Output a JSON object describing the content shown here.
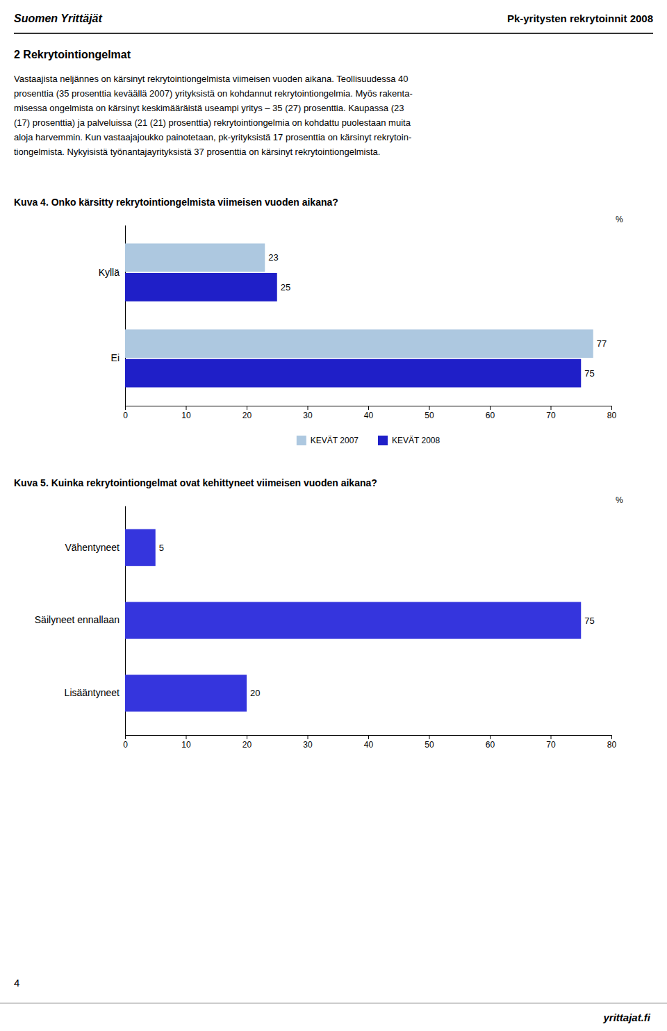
{
  "page": {
    "logo_text": "Suomen Yrittäjät",
    "header_title": "Pk-yritysten rekrytoinnit 2008",
    "section_title": "2 Rekrytointiongelmat",
    "body_text_lines": [
      "Vastaajista neljännes on kärsinyt rekrytointiongelmista viimeisen vuoden aikana. Teollisuudessa 40",
      "prosenttia (35 prosenttia keväällä 2007) yrityksistä on kohdannut rekrytointiongelmia. Myös rakenta-",
      "misessa ongelmista on kärsinyt keskimääräistä useampi yritys – 35 (27) prosenttia. Kaupassa (23",
      "(17) prosenttia) ja palveluissa (21 (21) prosenttia) rekrytointiongelmia on kohdattu puolestaan muita",
      "aloja harvemmin. Kun vastaajajoukko painotetaan, pk-yrityksistä 17 prosenttia on kärsinyt rekrytoin-",
      "tiongelmista. Nykyisistä työnantajayrityksistä 37 prosenttia on kärsinyt rekrytointiongelmista."
    ],
    "footer_number": "4",
    "footer_url": "yrittajat.fi"
  },
  "chart_data": [
    {
      "type": "bar",
      "orientation": "horizontal",
      "title": "Kuva 4. Onko kärsitty rekrytointiongelmista viimeisen vuoden aikana?",
      "x_label": "%",
      "categories": [
        "Kyllä",
        "Ei"
      ],
      "series": [
        {
          "name": "KEVÄT 2007",
          "color": "#adc8e0",
          "values": [
            23,
            77
          ]
        },
        {
          "name": "KEVÄT 2008",
          "color": "#1f1fc8",
          "values": [
            25,
            75
          ]
        }
      ],
      "xlim": [
        0,
        80
      ],
      "xticks": [
        0,
        10,
        20,
        30,
        40,
        50,
        60,
        70,
        80
      ],
      "data_labels": true,
      "legend": "bottom",
      "grid": false
    },
    {
      "type": "bar",
      "orientation": "horizontal",
      "title": "Kuva 5. Kuinka rekrytointiongelmat ovat kehittyneet viimeisen vuoden aikana?",
      "x_label": "%",
      "categories": [
        "Vähentyneet",
        "Säilyneet ennallaan",
        "Lisääntyneet"
      ],
      "values": [
        5,
        75,
        20
      ],
      "color": "#3535dd",
      "xlim": [
        0,
        80
      ],
      "xticks": [
        0,
        10,
        20,
        30,
        40,
        50,
        60,
        70,
        80
      ],
      "data_labels": true,
      "grid": false
    }
  ]
}
